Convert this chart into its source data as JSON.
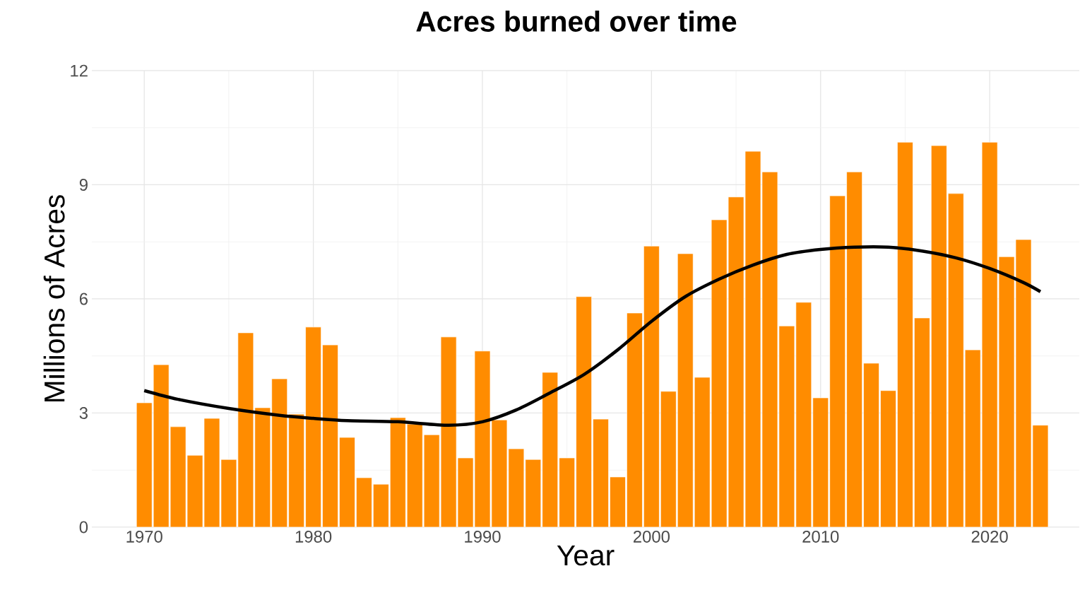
{
  "chart_data": {
    "type": "bar",
    "title": "Acres burned over time",
    "xlabel": "Year",
    "ylabel": "Millions of Acres",
    "x": [
      1970,
      1971,
      1972,
      1973,
      1974,
      1975,
      1976,
      1977,
      1978,
      1979,
      1980,
      1981,
      1982,
      1983,
      1984,
      1985,
      1986,
      1987,
      1988,
      1989,
      1990,
      1991,
      1992,
      1993,
      1994,
      1995,
      1996,
      1997,
      1998,
      1999,
      2000,
      2001,
      2002,
      2003,
      2004,
      2005,
      2006,
      2007,
      2008,
      2009,
      2010,
      2011,
      2012,
      2013,
      2014,
      2015,
      2016,
      2017,
      2018,
      2019,
      2020,
      2021,
      2022,
      2023
    ],
    "series": [
      {
        "color": "#ff8c00",
        "values": [
          3.27,
          4.27,
          2.64,
          1.89,
          2.86,
          1.78,
          5.11,
          3.14,
          3.9,
          2.97,
          5.26,
          4.79,
          2.36,
          1.3,
          1.13,
          2.88,
          2.71,
          2.43,
          5.0,
          1.82,
          4.63,
          2.82,
          2.06,
          1.78,
          4.07,
          1.82,
          6.06,
          2.84,
          1.32,
          5.63,
          7.39,
          3.57,
          7.19,
          3.94,
          8.08,
          8.68,
          9.88,
          9.34,
          5.29,
          5.91,
          3.4,
          8.71,
          9.34,
          4.31,
          3.59,
          10.12,
          5.5,
          10.03,
          8.77,
          4.66,
          10.12,
          7.11,
          7.56,
          2.68
        ]
      },
      {
        "type": "line",
        "color": "#000000",
        "x": [
          1970,
          1972,
          1975,
          1978,
          1980,
          1982,
          1985,
          1988,
          1990,
          1992,
          1994,
          1996,
          1998,
          2000,
          2002,
          2004,
          2006,
          2008,
          2010,
          2012,
          2014,
          2016,
          2018,
          2020,
          2022,
          2023
        ],
        "values": [
          3.59,
          3.36,
          3.12,
          2.94,
          2.86,
          2.8,
          2.77,
          2.68,
          2.77,
          3.08,
          3.53,
          4.01,
          4.66,
          5.41,
          6.06,
          6.52,
          6.89,
          7.17,
          7.3,
          7.36,
          7.36,
          7.26,
          7.08,
          6.8,
          6.43,
          6.19
        ]
      }
    ],
    "xlim": [
      1966.9,
      2025.3
    ],
    "ylim": [
      0,
      12
    ],
    "xticks": [
      1970,
      1980,
      1990,
      2000,
      2010,
      2020
    ],
    "yticks": [
      0,
      3,
      6,
      9,
      12
    ],
    "grid": true
  }
}
